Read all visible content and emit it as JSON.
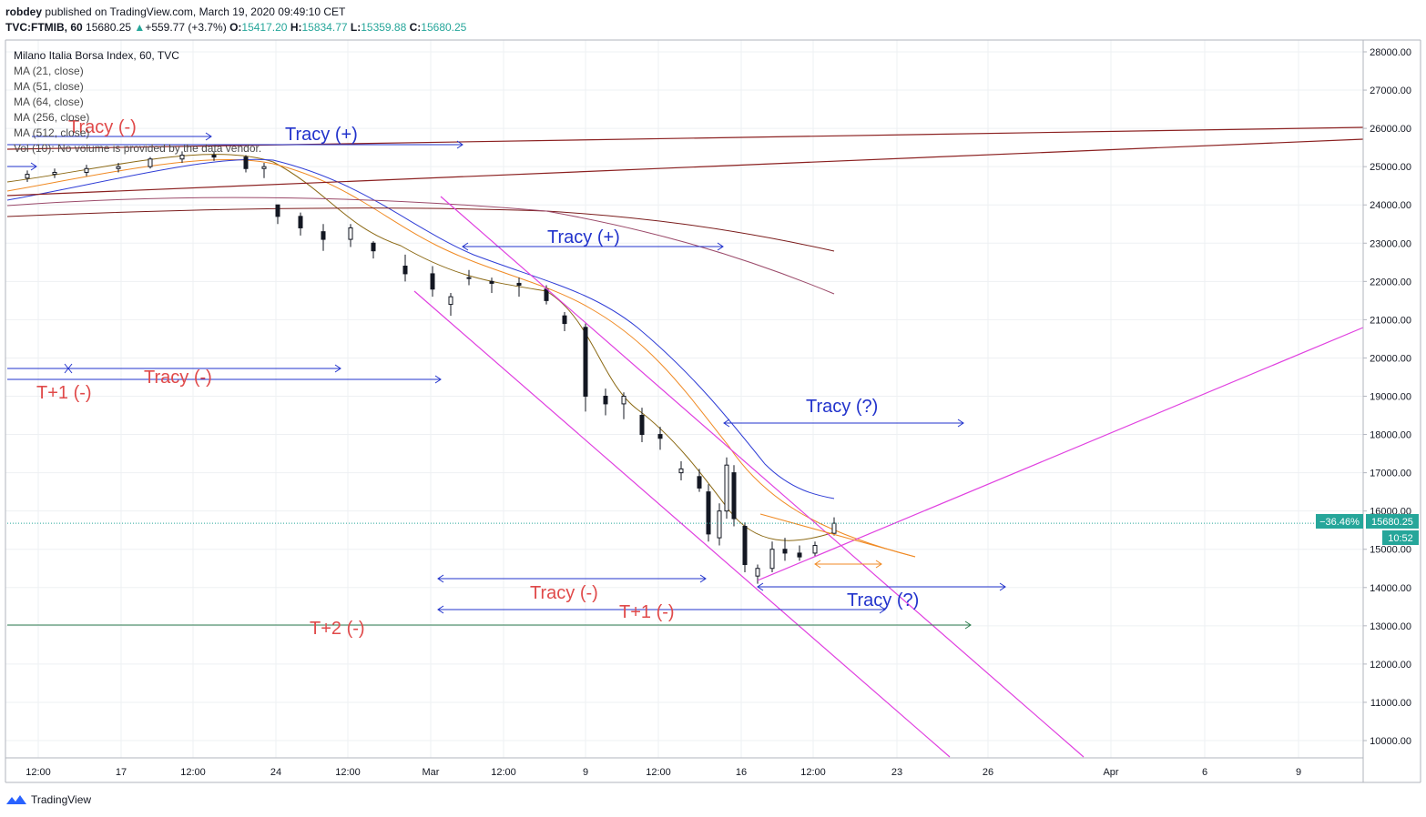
{
  "header": {
    "author": "robdey",
    "published_text": "published on TradingView.com, March 19, 2020 09:49:10 CET",
    "symbol": "TVC:FTMIB, 60",
    "last_price": "15680.25",
    "change": "+559.77 (+3.7%)",
    "open_label": "O:",
    "open": "15417.20",
    "high_label": "H:",
    "high": "15834.77",
    "low_label": "L:",
    "low": "15359.88",
    "close_label": "C:",
    "close": "15680.25"
  },
  "legend": {
    "title": "Milano Italia Borsa Index, 60, TVC",
    "studies": [
      "MA (21, close)",
      "MA (51, close)",
      "MA (64, close)",
      "MA (256, close)",
      "MA (512, close)",
      "Vol (10): No volume is provided by the data vendor."
    ]
  },
  "brand": {
    "name": "TradingView"
  },
  "chart_data": {
    "type": "candlestick",
    "x_tick_labels": [
      "12:00",
      "17",
      "12:00",
      "24",
      "12:00",
      "Mar",
      "12:00",
      "9",
      "12:00",
      "16",
      "12:00",
      "23",
      "26",
      "Apr",
      "6",
      "9"
    ],
    "y_tick_labels": [
      "28000.00",
      "27000.00",
      "26000.00",
      "25000.00",
      "24000.00",
      "23000.00",
      "22000.00",
      "21000.00",
      "20000.00",
      "19000.00",
      "18000.00",
      "17000.00",
      "16000.00",
      "15000.00",
      "14000.00",
      "13000.00",
      "12000.00",
      "11000.00",
      "10000.00"
    ],
    "ylim": [
      9500,
      28500
    ],
    "price_label": "15680.25",
    "change_label": "−36.46%",
    "countdown_label": "10:52",
    "last_price": 15680.25,
    "colors": {
      "up": "#26a69a",
      "down": "#ef5350",
      "candle": "#131722",
      "price_line": "#26a69a"
    },
    "candles_approx": [
      [
        24700,
        24900,
        24600,
        24800
      ],
      [
        24800,
        24950,
        24700,
        24850
      ],
      [
        24850,
        25050,
        24750,
        24950
      ],
      [
        24950,
        25100,
        24850,
        25000
      ],
      [
        25000,
        25250,
        24950,
        25200
      ],
      [
        25200,
        25400,
        25100,
        25300
      ],
      [
        25300,
        25400,
        25150,
        25250
      ],
      [
        25250,
        25300,
        24850,
        24950
      ],
      [
        24950,
        25100,
        24700,
        25000
      ],
      [
        24000,
        24000,
        23500,
        23700
      ],
      [
        23700,
        23800,
        23200,
        23400
      ],
      [
        23300,
        23500,
        22800,
        23100
      ],
      [
        23100,
        23500,
        22900,
        23400
      ],
      [
        23000,
        23050,
        22600,
        22800
      ],
      [
        22400,
        22700,
        22000,
        22200
      ],
      [
        22200,
        22400,
        21600,
        21800
      ],
      [
        21400,
        21700,
        21100,
        21600
      ],
      [
        22100,
        22300,
        21900,
        22100
      ],
      [
        22000,
        22100,
        21700,
        21950
      ],
      [
        21950,
        22100,
        21600,
        21900
      ],
      [
        21800,
        21900,
        21400,
        21500
      ],
      [
        21100,
        21200,
        20700,
        20900
      ],
      [
        20800,
        20900,
        18600,
        19000
      ],
      [
        19000,
        19200,
        18500,
        18800
      ],
      [
        18800,
        19100,
        18400,
        19000
      ],
      [
        18500,
        18700,
        17800,
        18000
      ],
      [
        18000,
        18200,
        17600,
        17900
      ],
      [
        17000,
        17300,
        16800,
        17100
      ],
      [
        16900,
        17100,
        16500,
        16600
      ],
      [
        16500,
        16700,
        15200,
        15400
      ],
      [
        15300,
        16200,
        15100,
        16000
      ],
      [
        16000,
        17400,
        15800,
        17200
      ],
      [
        17000,
        17200,
        15600,
        15800
      ],
      [
        15600,
        15700,
        14400,
        14600
      ],
      [
        14300,
        14600,
        14100,
        14500
      ],
      [
        14500,
        15200,
        14400,
        15000
      ],
      [
        15000,
        15300,
        14700,
        14900
      ],
      [
        14900,
        15100,
        14700,
        14800
      ],
      [
        14900,
        15200,
        14800,
        15100
      ],
      [
        15417.2,
        15834.77,
        15359.88,
        15680.25
      ]
    ],
    "moving_averages": [
      {
        "name": "MA (21, close)",
        "color": "#8b6914"
      },
      {
        "name": "MA (51, close)",
        "color": "#f08a24"
      },
      {
        "name": "MA (64, close)",
        "color": "#2f3dd6"
      },
      {
        "name": "MA (256, close)",
        "color": "#7b1c1c"
      },
      {
        "name": "MA (512, close)",
        "color": "#9b4a6a"
      }
    ],
    "annotations": [
      {
        "text": "Tracy (-)",
        "color": "#e04a4a"
      },
      {
        "text": "Tracy (+)",
        "color": "#2233cc"
      },
      {
        "text": "Tracy (+)",
        "color": "#2233cc"
      },
      {
        "text": "Tracy (-)",
        "color": "#e04a4a"
      },
      {
        "text": "T+1 (-)",
        "color": "#e04a4a"
      },
      {
        "text": "Tracy (?)",
        "color": "#2233cc"
      },
      {
        "text": "Tracy (-)",
        "color": "#e04a4a"
      },
      {
        "text": "T+1 (-)",
        "color": "#e04a4a"
      },
      {
        "text": "Tracy (?)",
        "color": "#2233cc"
      },
      {
        "text": "T+2 (-)",
        "color": "#e04a4a"
      }
    ],
    "horizontal_level": 13000
  }
}
